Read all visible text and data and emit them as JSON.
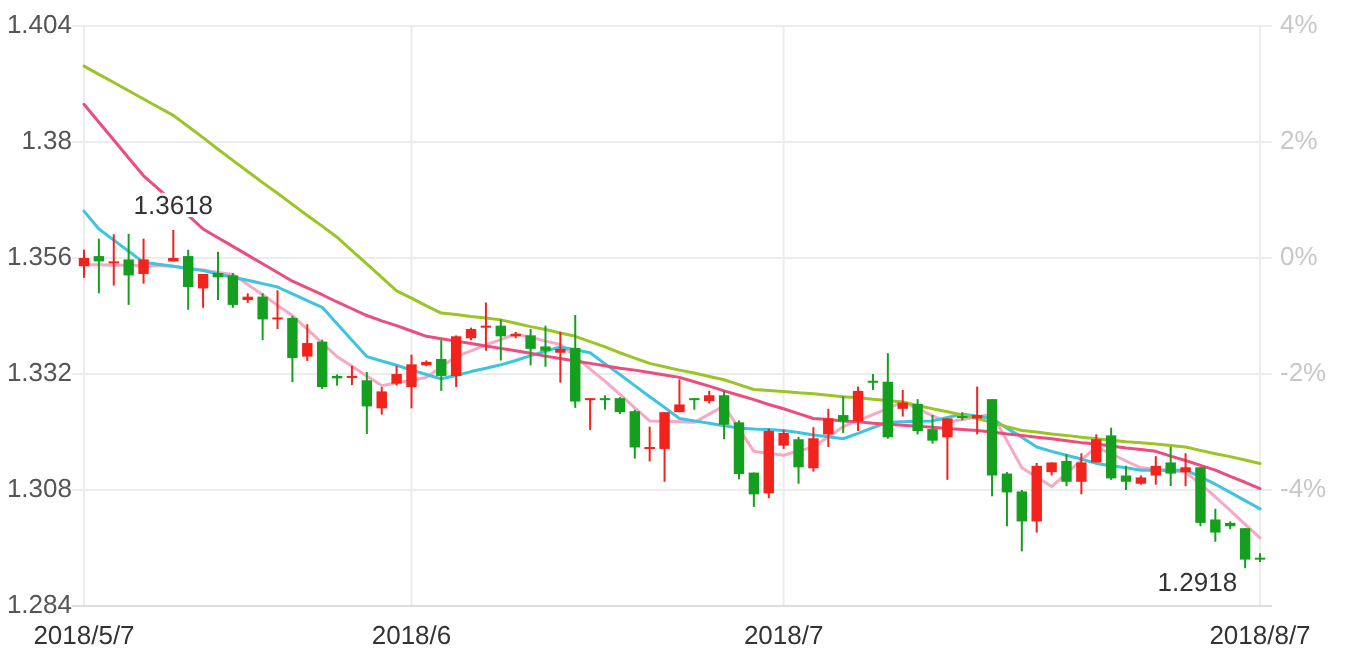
{
  "chart_data": {
    "type": "candlestick",
    "categories": [
      "2018/5/7",
      null,
      null,
      null,
      null,
      null,
      null,
      null,
      null,
      null,
      null,
      null,
      null,
      null,
      null,
      null,
      null,
      null,
      null,
      null,
      null,
      null,
      "2018/6",
      null,
      null,
      null,
      null,
      null,
      null,
      null,
      null,
      null,
      null,
      null,
      null,
      null,
      null,
      null,
      null,
      null,
      null,
      null,
      null,
      null,
      null,
      null,
      null,
      "2018/7",
      null,
      null,
      null,
      null,
      null,
      null,
      null,
      null,
      null,
      null,
      null,
      null,
      null,
      null,
      null,
      null,
      null,
      null,
      null,
      null,
      null,
      null,
      null,
      null,
      null,
      null,
      null,
      null,
      null,
      null,
      null,
      "2018/8/7"
    ],
    "ohlc": [
      [
        1.3543,
        1.3577,
        1.3519,
        1.356
      ],
      [
        1.3564,
        1.36,
        1.3487,
        1.3553
      ],
      [
        1.3549,
        1.3609,
        1.3503,
        1.3553
      ],
      [
        1.3557,
        1.361,
        1.3463,
        1.3524
      ],
      [
        1.3527,
        1.36,
        1.3507,
        1.3557
      ],
      null,
      [
        1.3553,
        1.3618,
        1.3553,
        1.356
      ],
      [
        1.3564,
        1.3577,
        1.3453,
        1.35
      ],
      [
        1.3497,
        1.3527,
        1.3457,
        1.3527
      ],
      [
        1.3529,
        1.3573,
        1.3473,
        1.352
      ],
      [
        1.3524,
        1.3529,
        1.3457,
        1.3463
      ],
      [
        1.3473,
        1.3487,
        1.3467,
        1.348
      ],
      [
        1.348,
        1.3487,
        1.339,
        1.3433
      ],
      [
        1.3436,
        1.3493,
        1.3413,
        1.3437
      ],
      [
        1.3436,
        1.344,
        1.3303,
        1.3353
      ],
      [
        1.3356,
        1.3423,
        1.3347,
        1.3384
      ],
      [
        1.3387,
        1.3391,
        1.3289,
        1.3293
      ],
      [
        1.3316,
        1.3319,
        1.3296,
        1.3311
      ],
      [
        1.3313,
        1.3337,
        1.3297,
        1.3316
      ],
      [
        1.3307,
        1.3324,
        1.3196,
        1.3253
      ],
      [
        1.3249,
        1.3293,
        1.3236,
        1.3284
      ],
      [
        1.33,
        1.3337,
        1.3296,
        1.332
      ],
      [
        1.3293,
        1.336,
        1.3249,
        1.334
      ],
      [
        1.3338,
        1.3348,
        1.3336,
        1.3345
      ],
      [
        1.3351,
        1.339,
        1.3285,
        1.3316
      ],
      [
        1.3316,
        1.34,
        1.3293,
        1.3398
      ],
      [
        1.3394,
        1.3416,
        1.339,
        1.3413
      ],
      [
        1.3416,
        1.3468,
        1.3368,
        1.342
      ],
      [
        1.342,
        1.3433,
        1.3348,
        1.3398
      ],
      [
        1.3398,
        1.3407,
        1.3394,
        1.3403
      ],
      [
        1.34,
        1.3413,
        1.3338,
        1.3372
      ],
      [
        1.3377,
        1.342,
        1.3335,
        1.3368
      ],
      [
        1.3364,
        1.3407,
        1.3302,
        1.3372
      ],
      [
        1.3374,
        1.3442,
        1.325,
        1.3263
      ],
      [
        1.3267,
        1.327,
        1.3204,
        1.327
      ],
      [
        1.327,
        1.3276,
        1.3246,
        1.3267
      ],
      [
        1.327,
        1.3272,
        1.3237,
        1.3241
      ],
      [
        1.3243,
        1.3246,
        1.3145,
        1.3168
      ],
      [
        1.3166,
        1.3211,
        1.3139,
        1.3169
      ],
      [
        1.3165,
        1.3241,
        1.3097,
        1.3241
      ],
      [
        1.3241,
        1.3309,
        1.3241,
        1.3257
      ],
      [
        1.327,
        1.327,
        1.3246,
        1.3267
      ],
      [
        1.3264,
        1.3285,
        1.3259,
        1.3276
      ],
      [
        1.3276,
        1.3285,
        1.3185,
        1.3215
      ],
      [
        1.322,
        1.3224,
        1.3102,
        1.3113
      ],
      [
        1.3116,
        1.3116,
        1.3045,
        1.3071
      ],
      [
        1.3073,
        1.3207,
        1.3063,
        1.3202
      ],
      [
        1.3172,
        1.3204,
        1.3165,
        1.3198
      ],
      [
        1.3185,
        1.319,
        1.3093,
        1.3127
      ],
      [
        1.3125,
        1.321,
        1.3118,
        1.3187
      ],
      [
        1.3195,
        1.3248,
        1.3169,
        1.3228
      ],
      [
        1.3235,
        1.3274,
        1.3198,
        1.3222
      ],
      [
        1.3222,
        1.3294,
        1.3202,
        1.3285
      ],
      [
        1.3306,
        1.332,
        1.3287,
        1.3303
      ],
      [
        1.3304,
        1.3363,
        1.3186,
        1.3189
      ],
      [
        1.3248,
        1.3287,
        1.3232,
        1.3261
      ],
      [
        1.3258,
        1.3268,
        1.3195,
        1.3202
      ],
      [
        1.3206,
        1.3235,
        1.3176,
        1.3182
      ],
      [
        1.3189,
        1.3228,
        1.3101,
        1.3228
      ],
      [
        1.3233,
        1.3241,
        1.3224,
        1.323
      ],
      [
        1.3228,
        1.3294,
        1.3195,
        1.3235
      ],
      [
        1.3268,
        1.3268,
        1.3067,
        1.311
      ],
      [
        1.3114,
        1.3117,
        1.3005,
        1.3075
      ],
      [
        1.3077,
        1.308,
        1.2953,
        1.3015
      ],
      [
        1.3015,
        1.3136,
        1.2992,
        1.313
      ],
      [
        1.3117,
        1.3137,
        1.311,
        1.3137
      ],
      [
        1.314,
        1.3154,
        1.3088,
        1.3097
      ],
      [
        1.3097,
        1.3156,
        1.3071,
        1.3137
      ],
      [
        1.3137,
        1.3195,
        1.3137,
        1.3185
      ],
      [
        1.3193,
        1.3209,
        1.3101,
        1.3104
      ],
      [
        1.311,
        1.313,
        1.308,
        1.3097
      ],
      [
        1.3093,
        1.311,
        1.3091,
        1.3106
      ],
      [
        1.311,
        1.315,
        1.3091,
        1.313
      ],
      [
        1.3137,
        1.3169,
        1.3088,
        1.3114
      ],
      [
        1.3117,
        1.3156,
        1.3088,
        1.3127
      ],
      [
        1.3127,
        1.3127,
        1.3005,
        1.3012
      ],
      [
        1.3019,
        1.3041,
        1.2973,
        1.2992
      ],
      [
        1.3012,
        1.3015,
        1.2999,
        1.3005
      ],
      [
        1.3001,
        1.3001,
        1.2918,
        1.2936
      ],
      [
        1.294,
        1.2949,
        1.2931,
        1.2938
      ]
    ],
    "colors": [
      "#f2221c",
      "#14a01e",
      "#f2221c",
      "#14a01e",
      "#f2221c",
      null,
      "#f2221c",
      "#14a01e",
      "#f2221c",
      "#14a01e",
      "#14a01e",
      "#f2221c",
      "#14a01e",
      "#f2221c",
      "#14a01e",
      "#f2221c",
      "#14a01e",
      "#14a01e",
      "#f2221c",
      "#14a01e",
      "#f2221c",
      "#f2221c",
      "#f2221c",
      "#f2221c",
      "#14a01e",
      "#f2221c",
      "#f2221c",
      "#f2221c",
      "#14a01e",
      "#f2221c",
      "#14a01e",
      "#14a01e",
      "#f2221c",
      "#14a01e",
      "#f2221c",
      "#14a01e",
      "#14a01e",
      "#14a01e",
      "#f2221c",
      "#f2221c",
      "#f2221c",
      "#14a01e",
      "#f2221c",
      "#14a01e",
      "#14a01e",
      "#14a01e",
      "#f2221c",
      "#f2221c",
      "#14a01e",
      "#f2221c",
      "#f2221c",
      "#14a01e",
      "#f2221c",
      "#14a01e",
      "#14a01e",
      "#f2221c",
      "#14a01e",
      "#14a01e",
      "#f2221c",
      "#14a01e",
      "#f2221c",
      "#14a01e",
      "#14a01e",
      "#14a01e",
      "#f2221c",
      "#f2221c",
      "#14a01e",
      "#f2221c",
      "#f2221c",
      "#14a01e",
      "#14a01e",
      "#f2221c",
      "#f2221c",
      "#14a01e",
      "#f2221c",
      "#14a01e",
      "#14a01e",
      "#14a01e",
      "#14a01e",
      "#14a01e"
    ],
    "series": [
      {
        "type": "line",
        "color": "#f7a8c4",
        "values": [
          1.3546,
          1.3546,
          1.3545,
          1.3545,
          1.3544,
          1.3544,
          1.3543,
          1.3539,
          1.3535,
          1.353,
          1.3526,
          1.3505,
          1.3484,
          1.3462,
          1.3441,
          1.3413,
          1.3384,
          1.3356,
          1.3336,
          1.3316,
          1.3296,
          1.3302,
          1.3307,
          1.3313,
          1.3335,
          1.3356,
          1.3368,
          1.338,
          1.3391,
          1.3403,
          1.3396,
          1.3388,
          1.3381,
          1.3356,
          1.333,
          1.3305,
          1.3278,
          1.325,
          1.3223,
          1.3222,
          1.3221,
          1.322,
          1.3237,
          1.3254,
          1.3207,
          1.316,
          1.3156,
          1.3152,
          1.3161,
          1.3169,
          1.319,
          1.3211,
          1.3224,
          1.3236,
          1.3249,
          1.3262,
          1.3248,
          1.3234,
          1.322,
          1.3226,
          1.3231,
          1.3237,
          1.3182,
          1.3126,
          1.3107,
          1.3087,
          1.3114,
          1.3142,
          1.3169,
          1.3155,
          1.314,
          1.3126,
          1.3123,
          1.312,
          1.3117,
          1.3092,
          1.3066,
          1.3038,
          1.3009,
          1.2981
        ]
      },
      {
        "type": "line",
        "color": "#3cc4e0",
        "values": [
          1.3657,
          1.362,
          1.3597,
          1.3574,
          1.3551,
          1.3547,
          1.3543,
          1.3538,
          1.3534,
          1.3527,
          1.352,
          1.3514,
          1.3507,
          1.35,
          1.3486,
          1.3472,
          1.3458,
          1.3424,
          1.339,
          1.3356,
          1.3347,
          1.3338,
          1.3328,
          1.3319,
          1.331,
          1.3317,
          1.3325,
          1.3332,
          1.3339,
          1.3348,
          1.3358,
          1.3367,
          1.3376,
          1.337,
          1.3364,
          1.3341,
          1.3319,
          1.3296,
          1.3273,
          1.3251,
          1.3228,
          1.3223,
          1.3218,
          1.3213,
          1.3208,
          1.3206,
          1.3205,
          1.3203,
          1.3199,
          1.3194,
          1.319,
          1.3186,
          1.3197,
          1.3209,
          1.322,
          1.3221,
          1.3222,
          1.3223,
          1.323,
          1.3237,
          1.3233,
          1.3228,
          1.3208,
          1.3189,
          1.3169,
          1.316,
          1.3152,
          1.3144,
          1.3135,
          1.313,
          1.3126,
          1.3121,
          1.3121,
          1.3121,
          1.3121,
          1.3107,
          1.3092,
          1.3075,
          1.3058,
          1.3041
        ]
      },
      {
        "type": "line",
        "color": "#ec4c7e",
        "values": [
          1.3878,
          1.3841,
          1.3804,
          1.3767,
          1.373,
          1.3703,
          1.3675,
          1.3648,
          1.362,
          1.3602,
          1.3584,
          1.3566,
          1.3548,
          1.353,
          1.3512,
          1.3498,
          1.3484,
          1.3469,
          1.3455,
          1.3441,
          1.343,
          1.342,
          1.3409,
          1.3398,
          1.3393,
          1.3388,
          1.3383,
          1.3378,
          1.3373,
          1.3368,
          1.3363,
          1.3357,
          1.3352,
          1.3347,
          1.3342,
          1.3337,
          1.3332,
          1.3328,
          1.3323,
          1.3318,
          1.3313,
          1.3304,
          1.3295,
          1.3285,
          1.3276,
          1.3267,
          1.3257,
          1.3248,
          1.3238,
          1.3228,
          1.3226,
          1.3223,
          1.3221,
          1.3218,
          1.3216,
          1.3214,
          1.3212,
          1.321,
          1.3207,
          1.3205,
          1.3203,
          1.32,
          1.3196,
          1.3193,
          1.3189,
          1.3186,
          1.3182,
          1.3178,
          1.3175,
          1.3171,
          1.3167,
          1.3164,
          1.316,
          1.315,
          1.3141,
          1.3131,
          1.3121,
          1.3108,
          1.3096,
          1.3083
        ]
      },
      {
        "type": "line",
        "color": "#9cc426",
        "values": [
          1.3957,
          1.394,
          1.3923,
          1.3906,
          1.3889,
          1.3872,
          1.3855,
          1.3832,
          1.3809,
          1.3785,
          1.3762,
          1.3739,
          1.3716,
          1.3694,
          1.3671,
          1.3648,
          1.3626,
          1.3603,
          1.3575,
          1.3548,
          1.352,
          1.3492,
          1.3477,
          1.3461,
          1.3446,
          1.3443,
          1.3439,
          1.3436,
          1.3432,
          1.3425,
          1.3418,
          1.3412,
          1.3405,
          1.3398,
          1.3387,
          1.3376,
          1.3364,
          1.3353,
          1.3342,
          1.3335,
          1.3328,
          1.3322,
          1.3315,
          1.3308,
          1.3298,
          1.3288,
          1.3286,
          1.3284,
          1.3281,
          1.3279,
          1.3276,
          1.3273,
          1.3271,
          1.3268,
          1.3265,
          1.3262,
          1.3255,
          1.3248,
          1.3242,
          1.3235,
          1.3228,
          1.322,
          1.3211,
          1.3203,
          1.32,
          1.3196,
          1.3193,
          1.3189,
          1.3186,
          1.3183,
          1.318,
          1.3178,
          1.3175,
          1.3172,
          1.3169,
          1.3162,
          1.3155,
          1.3149,
          1.3142,
          1.3135
        ]
      }
    ],
    "ylim": [
      1.284,
      1.404
    ],
    "yticks": [
      1.284,
      1.308,
      1.332,
      1.356,
      1.38,
      1.404
    ],
    "y2lim": [
      -6,
      4
    ],
    "y2ticks": [
      {
        "value": 4,
        "label": "4%"
      },
      {
        "value": 2,
        "label": "2%"
      },
      {
        "value": 0,
        "label": "0%"
      },
      {
        "value": -2,
        "label": "-2%"
      },
      {
        "value": -4,
        "label": "-4%"
      }
    ],
    "grid": true,
    "annotations": [
      "1.3618",
      "1.2918"
    ]
  }
}
